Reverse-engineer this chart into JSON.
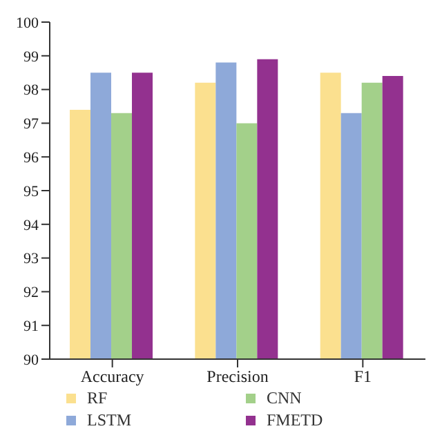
{
  "chart_data": {
    "type": "bar",
    "categories": [
      "Accuracy",
      "Precision",
      "F1"
    ],
    "series": [
      {
        "name": "RF",
        "color": "#fbe08f",
        "values": [
          97.4,
          98.2,
          98.5
        ]
      },
      {
        "name": "LSTM",
        "color": "#8ea9d9",
        "values": [
          98.5,
          98.8,
          97.3
        ]
      },
      {
        "name": "CNN",
        "color": "#a3d08a",
        "values": [
          97.3,
          97.0,
          98.2
        ]
      },
      {
        "name": "FMETD",
        "color": "#93318f",
        "values": [
          98.5,
          98.9,
          98.4
        ]
      }
    ],
    "ylim": [
      90,
      100
    ],
    "yticks": [
      90,
      91,
      92,
      93,
      94,
      95,
      96,
      97,
      98,
      99,
      100
    ],
    "grid": false,
    "legend": "bottom"
  }
}
